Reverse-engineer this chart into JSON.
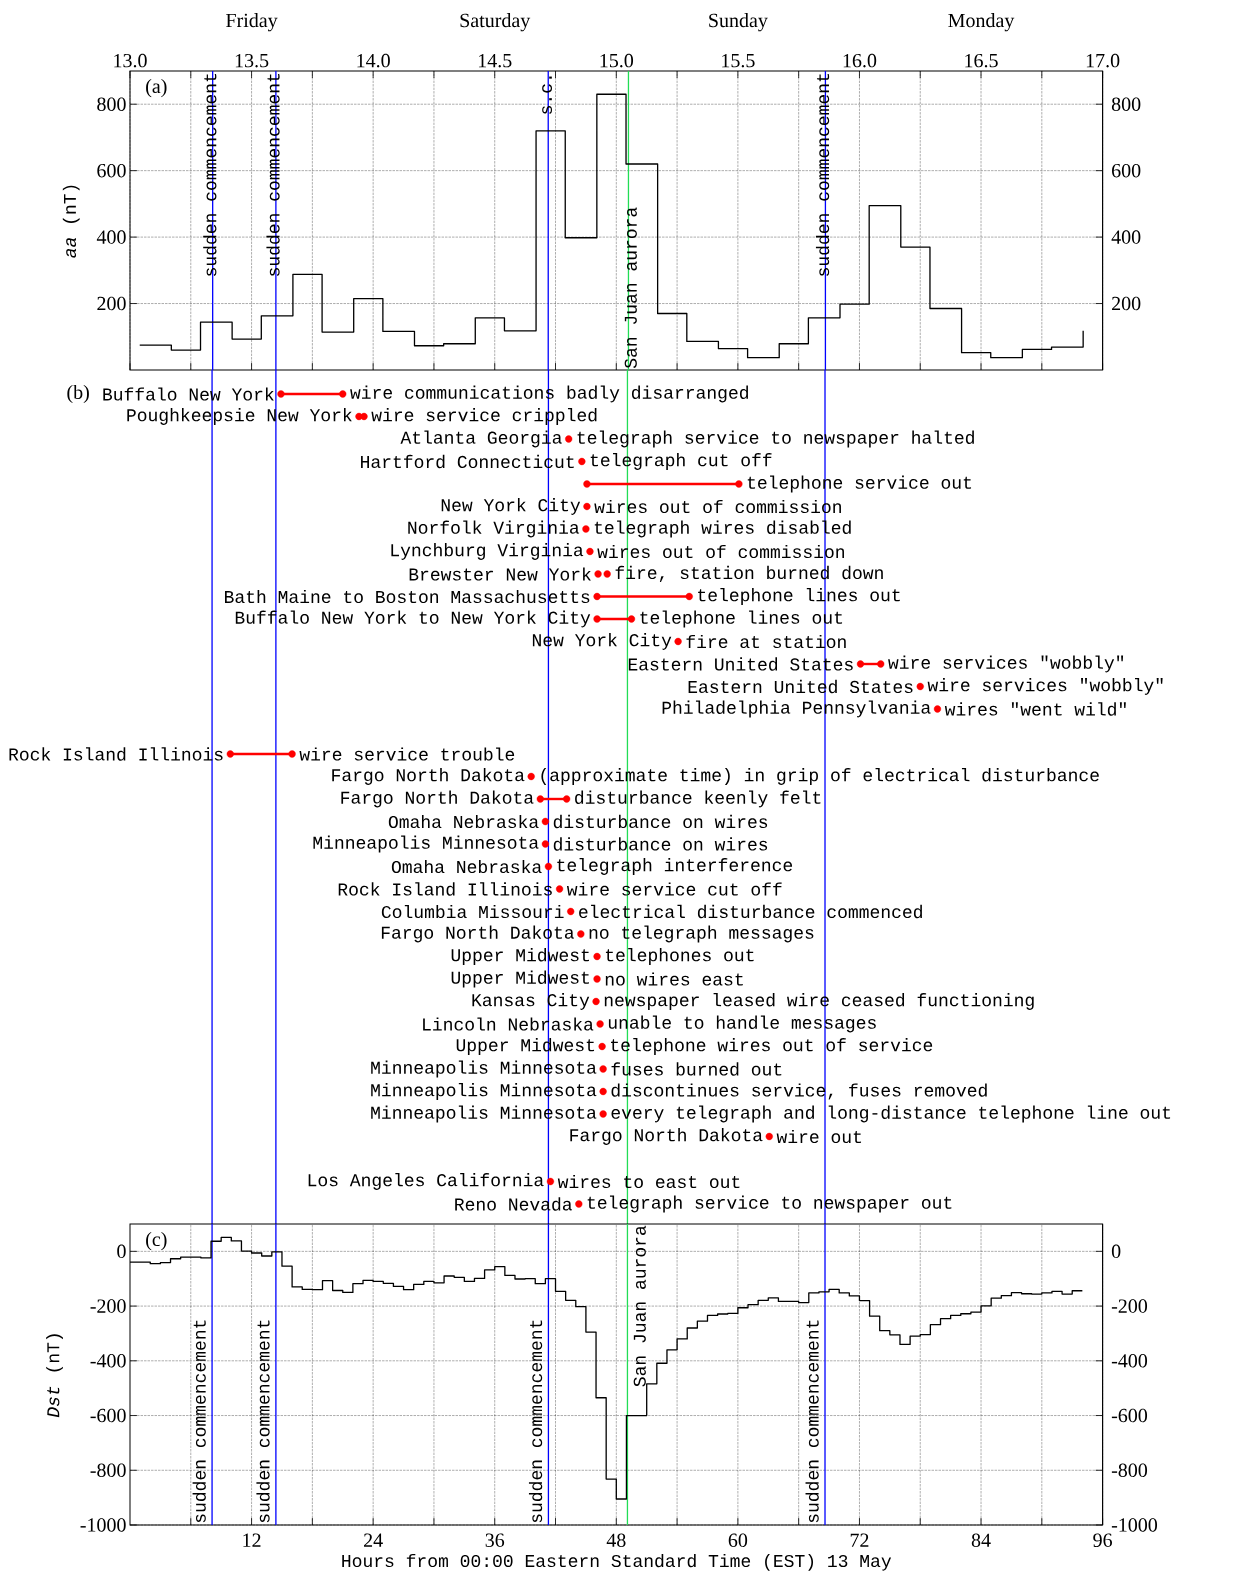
{
  "chart_data": [
    {
      "type": "step",
      "title": "(a)",
      "ylabel": "*aa* (nT)",
      "color": "#000000",
      "x": [
        13.04,
        13.17,
        13.29,
        13.42,
        13.54,
        13.67,
        13.79,
        13.92,
        14.04,
        14.17,
        14.29,
        14.42,
        14.54,
        14.67,
        14.79,
        14.92,
        15.04,
        15.17,
        15.29,
        15.42,
        15.54,
        15.67,
        15.79,
        15.92,
        16.04,
        16.17,
        16.29,
        16.42,
        16.54,
        16.67,
        16.79,
        16.92
      ],
      "values": [
        75,
        60,
        144,
        93,
        163,
        288,
        114,
        215,
        116,
        73,
        79,
        157,
        118,
        720,
        398,
        830,
        620,
        170,
        86,
        64,
        37,
        79,
        157,
        198,
        495,
        370,
        185,
        52,
        37,
        62,
        69,
        118
      ],
      "xlim": [
        13,
        17
      ],
      "xticks": [
        {
          "value": 13,
          "label": "13.0"
        },
        {
          "value": 13.25,
          "label": null
        },
        {
          "value": 13.5,
          "label": "13.5"
        },
        {
          "value": 13.75,
          "label": null
        },
        {
          "value": 14,
          "label": "14.0"
        },
        {
          "value": 14.25,
          "label": null
        },
        {
          "value": 14.5,
          "label": "14.5"
        },
        {
          "value": 14.75,
          "label": null
        },
        {
          "value": 15,
          "label": "15.0"
        },
        {
          "value": 15.25,
          "label": null
        },
        {
          "value": 15.5,
          "label": "15.5"
        },
        {
          "value": 15.75,
          "label": null
        },
        {
          "value": 16,
          "label": "16.0"
        },
        {
          "value": 16.25,
          "label": null
        },
        {
          "value": 16.5,
          "label": "16.5"
        },
        {
          "value": 16.75,
          "label": null
        },
        {
          "value": 17,
          "label": "17.0"
        }
      ],
      "ylim": [
        0,
        900
      ],
      "yticks": [
        200,
        400,
        600,
        800
      ],
      "y2lim": [
        0,
        900
      ],
      "y2ticks": [
        200,
        400,
        600,
        800
      ],
      "annotations": [
        "Friday",
        "Saturday",
        "Sunday",
        "Monday"
      ],
      "grid": true,
      "ref_lines": [
        {
          "axis": "x",
          "value": 13.34,
          "label": "sudden commencement",
          "color": "#0000ff"
        },
        {
          "axis": "x",
          "value": 13.6,
          "label": "sudden commencement",
          "color": "#0000ff"
        },
        {
          "axis": "x",
          "value": 14.72,
          "label": "s.c.",
          "color": "#0000ff"
        },
        {
          "axis": "x",
          "value": 15.05,
          "label": "San Juan aurora",
          "color": "#22dd55"
        },
        {
          "axis": "x",
          "value": 15.86,
          "label": "sudden commencement",
          "color": "#0000ff"
        }
      ]
    },
    {
      "type": "bar",
      "orientation": "horizontal",
      "title": "(b)",
      "marker": "circle",
      "categories": [
        "Buffalo New York",
        "Poughkeepsie New York",
        "Atlanta Georgia",
        "Hartford Connecticut",
        null,
        "New York City",
        "Norfolk Virginia",
        "Lynchburg Virginia",
        "Brewster New York",
        "Bath Maine to Boston Massachusetts",
        "Buffalo New York to New York City",
        "New York City",
        "Eastern United States",
        "Eastern United States",
        "Philadelphia Pennsylvania",
        null,
        "Rock Island Illinois",
        "Fargo North Dakota",
        "Fargo North Dakota",
        "Omaha Nebraska",
        "Minneapolis Minnesota",
        "Omaha Nebraska",
        "Rock Island Illinois",
        "Columbia Missouri",
        "Fargo North Dakota",
        "Upper Midwest",
        "Upper Midwest",
        "Kansas City",
        "Lincoln Nebraska",
        "Upper Midwest",
        "Minneapolis Minnesota",
        "Minneapolis Minnesota",
        "Minneapolis Minnesota",
        "Fargo North Dakota",
        null,
        "Los Angeles California",
        "Reno Nevada"
      ],
      "series": [
        {
          "type": "bar",
          "color": "#ff0000",
          "base": [
            14.9,
            null,
            null,
            null,
            45.1,
            null,
            null,
            null,
            null,
            46.1,
            46.1,
            null,
            72.1,
            null,
            null,
            null,
            9.9,
            null,
            40.5,
            null,
            null,
            null,
            null,
            null,
            null,
            null,
            null,
            null,
            null,
            null,
            null,
            null,
            null,
            null,
            null,
            null,
            null
          ],
          "values": [
            6.1,
            null,
            null,
            null,
            15.0,
            null,
            null,
            null,
            null,
            9.1,
            3.4,
            null,
            2.0,
            null,
            null,
            null,
            6.1,
            null,
            2.6,
            null,
            null,
            null,
            null,
            null,
            null,
            null,
            null,
            null,
            null,
            null,
            null,
            null,
            null,
            null,
            null,
            null,
            null
          ]
        },
        {
          "type": "scatter",
          "color": "#ff0000",
          "values": [
            14.9,
            22.6,
            null,
            null,
            45.1,
            null,
            null,
            null,
            46.2,
            46.1,
            46.1,
            null,
            72.1,
            null,
            null,
            null,
            9.9,
            null,
            40.5,
            null,
            null,
            null,
            null,
            null,
            null,
            null,
            null,
            null,
            null,
            null,
            null,
            null,
            null,
            null,
            null,
            null,
            null
          ]
        },
        {
          "type": "scatter",
          "color": "#ff0000",
          "values": [
            21.0,
            23.1,
            43.3,
            44.6,
            60.1,
            45.1,
            45.0,
            45.4,
            47.1,
            55.2,
            49.5,
            54.1,
            74.1,
            78.0,
            79.7,
            null,
            16.0,
            39.6,
            43.1,
            41.0,
            41.0,
            41.3,
            42.4,
            43.5,
            44.5,
            46.1,
            46.1,
            46.0,
            46.4,
            46.6,
            46.7,
            46.7,
            46.7,
            63.1,
            null,
            41.5,
            44.3
          ],
          "value_labels": [
            "wire communications badly disarranged",
            "wire service crippled",
            "telegraph service to newspaper halted",
            "telegraph cut off",
            "telephone service out",
            "wires out of commission",
            "telegraph wires disabled",
            "wires out of commission",
            "fire, station burned down",
            "telephone lines out",
            "telephone lines out",
            "fire at station",
            "wire services \"wobbly\"",
            "wire services \"wobbly\"",
            "wires \"went wild\"",
            null,
            "wire service trouble",
            "(approximate time) in grip of electrical disturbance",
            "disturbance keenly felt",
            "disturbance on wires",
            "disturbance on wires",
            "telegraph interference",
            "wire service cut off",
            "electrical disturbance commenced",
            "no telegraph messages",
            "telephones out",
            "no wires east",
            "newspaper leased wire ceased functioning",
            "unable to handle messages",
            "telephone wires out of service",
            "fuses burned out",
            "discontinues service, fuses removed",
            "every telegraph and long-distance telephone line out",
            "wire out",
            null,
            "wires to east out",
            "telegraph service to newspaper out"
          ]
        }
      ],
      "xlim": [
        0,
        96
      ],
      "tick_labels": false,
      "ref_lines": [
        {
          "axis": "x",
          "value": 8.1,
          "color": "#0000ff"
        },
        {
          "axis": "x",
          "value": 14.4,
          "color": "#0000ff"
        },
        {
          "axis": "x",
          "value": 41.3,
          "color": "#0000ff"
        },
        {
          "axis": "x",
          "value": 49.1,
          "color": "#22dd55"
        },
        {
          "axis": "x",
          "value": 68.6,
          "color": "#0000ff"
        }
      ]
    },
    {
      "type": "step",
      "title": "(c)",
      "ylabel": "*Dst* (nT)",
      "xlabel": "Hours from 00:00 Eastern Standard Time (EST) 13 May",
      "color": "#000000",
      "x": [
        0,
        1,
        2,
        3,
        4,
        5,
        6,
        7,
        8,
        9,
        10,
        11,
        12,
        13,
        14,
        15,
        16,
        17,
        18,
        19,
        20,
        21,
        22,
        23,
        24,
        25,
        26,
        27,
        28,
        29,
        30,
        31,
        32,
        33,
        34,
        35,
        36,
        37,
        38,
        39,
        40,
        41,
        42,
        43,
        44,
        45,
        46,
        47,
        48,
        49,
        50,
        51,
        52,
        53,
        54,
        55,
        56,
        57,
        58,
        59,
        60,
        61,
        62,
        63,
        64,
        65,
        66,
        67,
        68,
        69,
        70,
        71,
        72,
        73,
        74,
        75,
        76,
        77,
        78,
        79,
        80,
        81,
        82,
        83,
        84,
        85,
        86,
        87,
        88,
        89,
        90,
        91,
        92,
        93,
        94
      ],
      "values": [
        -39,
        -39,
        -45,
        -41,
        -27,
        -21,
        -21,
        -24,
        37,
        51,
        38,
        1,
        -6,
        -17,
        -2,
        -54,
        -130,
        -139,
        -140,
        -107,
        -143,
        -150,
        -118,
        -106,
        -110,
        -117,
        -128,
        -140,
        -121,
        -110,
        -115,
        -90,
        -95,
        -110,
        -99,
        -68,
        -56,
        -88,
        -101,
        -100,
        -118,
        -100,
        -146,
        -179,
        -202,
        -295,
        -535,
        -832,
        -905,
        -600,
        -600,
        -484,
        -409,
        -360,
        -320,
        -280,
        -255,
        -234,
        -229,
        -227,
        -206,
        -195,
        -179,
        -170,
        -183,
        -183,
        -187,
        -152,
        -148,
        -139,
        -152,
        -163,
        -180,
        -237,
        -290,
        -305,
        -340,
        -310,
        -304,
        -268,
        -246,
        -234,
        -228,
        -222,
        -199,
        -171,
        -162,
        -151,
        -155,
        -156,
        -152,
        -146,
        -156,
        -144,
        -144
      ],
      "xlim": [
        0,
        96
      ],
      "xticks": [
        {
          "value": 6,
          "label": null
        },
        12,
        {
          "value": 18,
          "label": null
        },
        24,
        {
          "value": 30,
          "label": null
        },
        36,
        {
          "value": 42,
          "label": null
        },
        48,
        {
          "value": 54,
          "label": null
        },
        60,
        {
          "value": 66,
          "label": null
        },
        72,
        {
          "value": 78,
          "label": null
        },
        84,
        {
          "value": 90,
          "label": null
        },
        96
      ],
      "ylim": [
        -1000,
        100
      ],
      "yticks": [
        -1000,
        -800,
        -600,
        -400,
        -200,
        0
      ],
      "y2lim": [
        -1000,
        100
      ],
      "y2ticks": [
        -1000,
        -800,
        -600,
        -400,
        -200,
        0
      ],
      "grid": true,
      "ref_lines": [
        {
          "axis": "x",
          "value": 8.1,
          "label": "sudden commencement",
          "color": "#0000ff"
        },
        {
          "axis": "x",
          "value": 14.4,
          "label": "sudden commencement",
          "color": "#0000ff"
        },
        {
          "axis": "x",
          "value": 41.3,
          "label": "sudden commencement",
          "color": "#0000ff"
        },
        {
          "axis": "x",
          "value": 49.1,
          "label": "San Juan aurora",
          "color": "#22dd55"
        },
        {
          "axis": "x",
          "value": 68.6,
          "label": "sudden commencement",
          "color": "#0000ff"
        }
      ]
    }
  ]
}
